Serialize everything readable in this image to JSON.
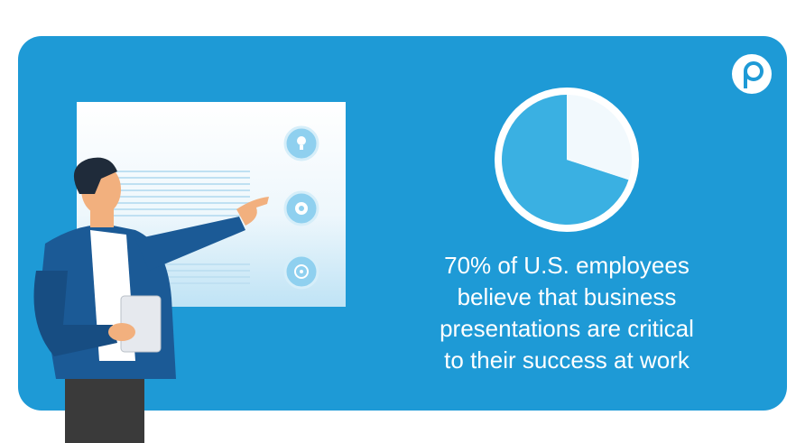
{
  "chart_data": {
    "type": "pie",
    "values": [
      70,
      30
    ],
    "colors": [
      "#3ab0e2",
      "#f2f9fd"
    ]
  },
  "caption": [
    "70% of U.S. employees",
    "believe that business",
    "presentations are critical",
    "to their success at work"
  ]
}
